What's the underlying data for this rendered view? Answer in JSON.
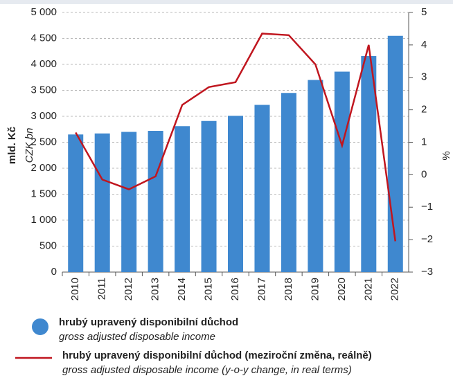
{
  "chart_data": {
    "type": "bar_line",
    "y_label": "mld. Kč",
    "y_label_en": "CZK bn",
    "y2_label": "%",
    "categories": [
      "2010",
      "2011",
      "2012",
      "2013",
      "2014",
      "2015",
      "2016",
      "2017",
      "2018",
      "2019",
      "2020",
      "2021",
      "2022"
    ],
    "series": [
      {
        "name": "hrubý upravený disponibilní důchod",
        "legend_note": "gross adjusted disposable income",
        "color": "#3f88cf",
        "kind": "bar",
        "values": [
          2650,
          2670,
          2700,
          2720,
          2810,
          2910,
          3010,
          3220,
          3450,
          3700,
          3860,
          4160,
          4550
        ]
      },
      {
        "name": "hrubý upravený disponibilní důchod (meziroční změna, reálně)",
        "legend_note": "gross adjusted disposable income (y-o-y change, in real terms)",
        "color": "#c0161f",
        "kind": "line",
        "axis": "y2",
        "values": [
          1.3,
          -0.15,
          -0.45,
          -0.05,
          2.15,
          2.7,
          2.85,
          4.35,
          4.3,
          3.4,
          0.9,
          4.0,
          -2.05
        ]
      }
    ],
    "ylim": [
      0,
      5000
    ],
    "yticks": [
      0,
      500,
      {
        "value": 1000,
        "label": "1 000"
      },
      {
        "value": 1500,
        "label": "1 500"
      },
      {
        "value": 2000,
        "label": "2 000"
      },
      {
        "value": 2500,
        "label": "2 500"
      },
      {
        "value": 3000,
        "label": "3 000"
      },
      {
        "value": 3500,
        "label": "3 500"
      },
      {
        "value": 4000,
        "label": "4 000"
      },
      {
        "value": 4500,
        "label": "4 500"
      },
      {
        "value": 5000,
        "label": "5 000"
      }
    ],
    "y2lim": [
      -3,
      5
    ],
    "y2ticks": [
      {
        "value": -3,
        "label": "−3"
      },
      {
        "value": -2,
        "label": "−2"
      },
      {
        "value": -1,
        "label": "−1"
      },
      0,
      1,
      2,
      3,
      4,
      5
    ],
    "grid": true
  }
}
